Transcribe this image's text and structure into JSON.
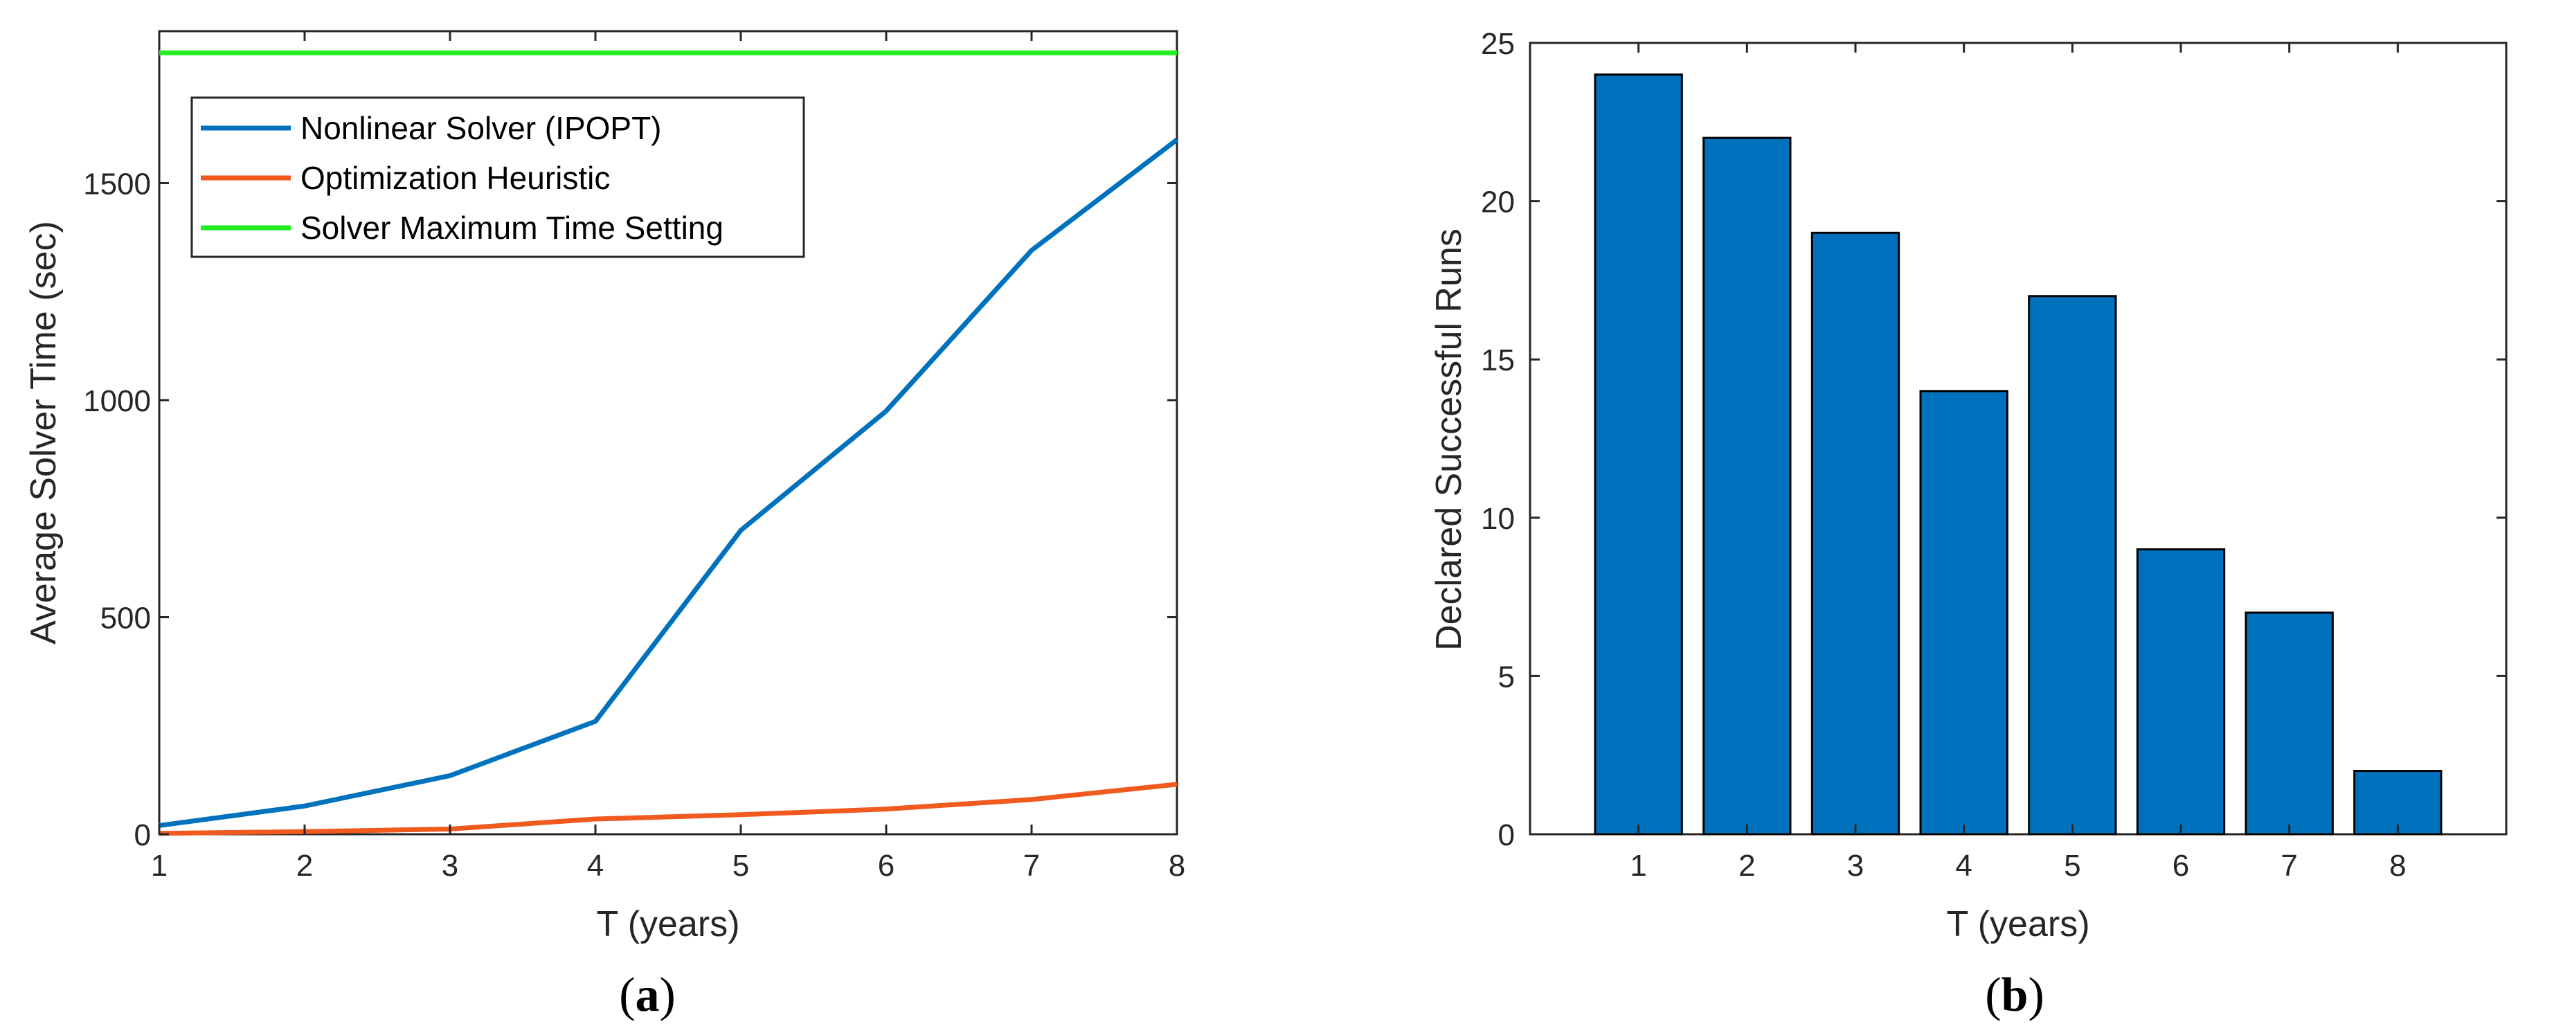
{
  "chart_data": [
    {
      "type": "line",
      "panel_label": "a",
      "xlabel": "T (years)",
      "ylabel": "Average Solver Time (sec)",
      "xlim": [
        1,
        8
      ],
      "ylim": [
        0,
        1850
      ],
      "x": [
        1,
        2,
        3,
        4,
        5,
        6,
        7,
        8
      ],
      "xticks": [
        "1",
        "2",
        "3",
        "4",
        "5",
        "6",
        "7",
        "8"
      ],
      "yticks": [
        "0",
        "500",
        "1000",
        "1500"
      ],
      "ytick_values": [
        0,
        500,
        1000,
        1500
      ],
      "legend_location": "top-left",
      "series": [
        {
          "name": "Nonlinear Solver (IPOPT)",
          "color": "#0072BD",
          "values": [
            20,
            65,
            135,
            260,
            700,
            975,
            1345,
            1600
          ]
        },
        {
          "name": "Optimization Heuristic",
          "color": "#F05A1E",
          "values": [
            2,
            6,
            12,
            35,
            45,
            58,
            80,
            115
          ]
        },
        {
          "name": "Solver Maximum Time Setting",
          "color": "#22EE22",
          "values": [
            1800,
            1800,
            1800,
            1800,
            1800,
            1800,
            1800,
            1800
          ]
        }
      ]
    },
    {
      "type": "bar",
      "panel_label": "b",
      "xlabel": "T (years)",
      "ylabel": "Declared Successful Runs",
      "categories": [
        "1",
        "2",
        "3",
        "4",
        "5",
        "6",
        "7",
        "8"
      ],
      "values": [
        24,
        22,
        19,
        14,
        17,
        9,
        7,
        2
      ],
      "ylim": [
        0,
        25
      ],
      "yticks": [
        "0",
        "5",
        "10",
        "15",
        "20",
        "25"
      ],
      "ytick_values": [
        0,
        5,
        10,
        15,
        20,
        25
      ],
      "bar_color": "#0072BD"
    }
  ]
}
